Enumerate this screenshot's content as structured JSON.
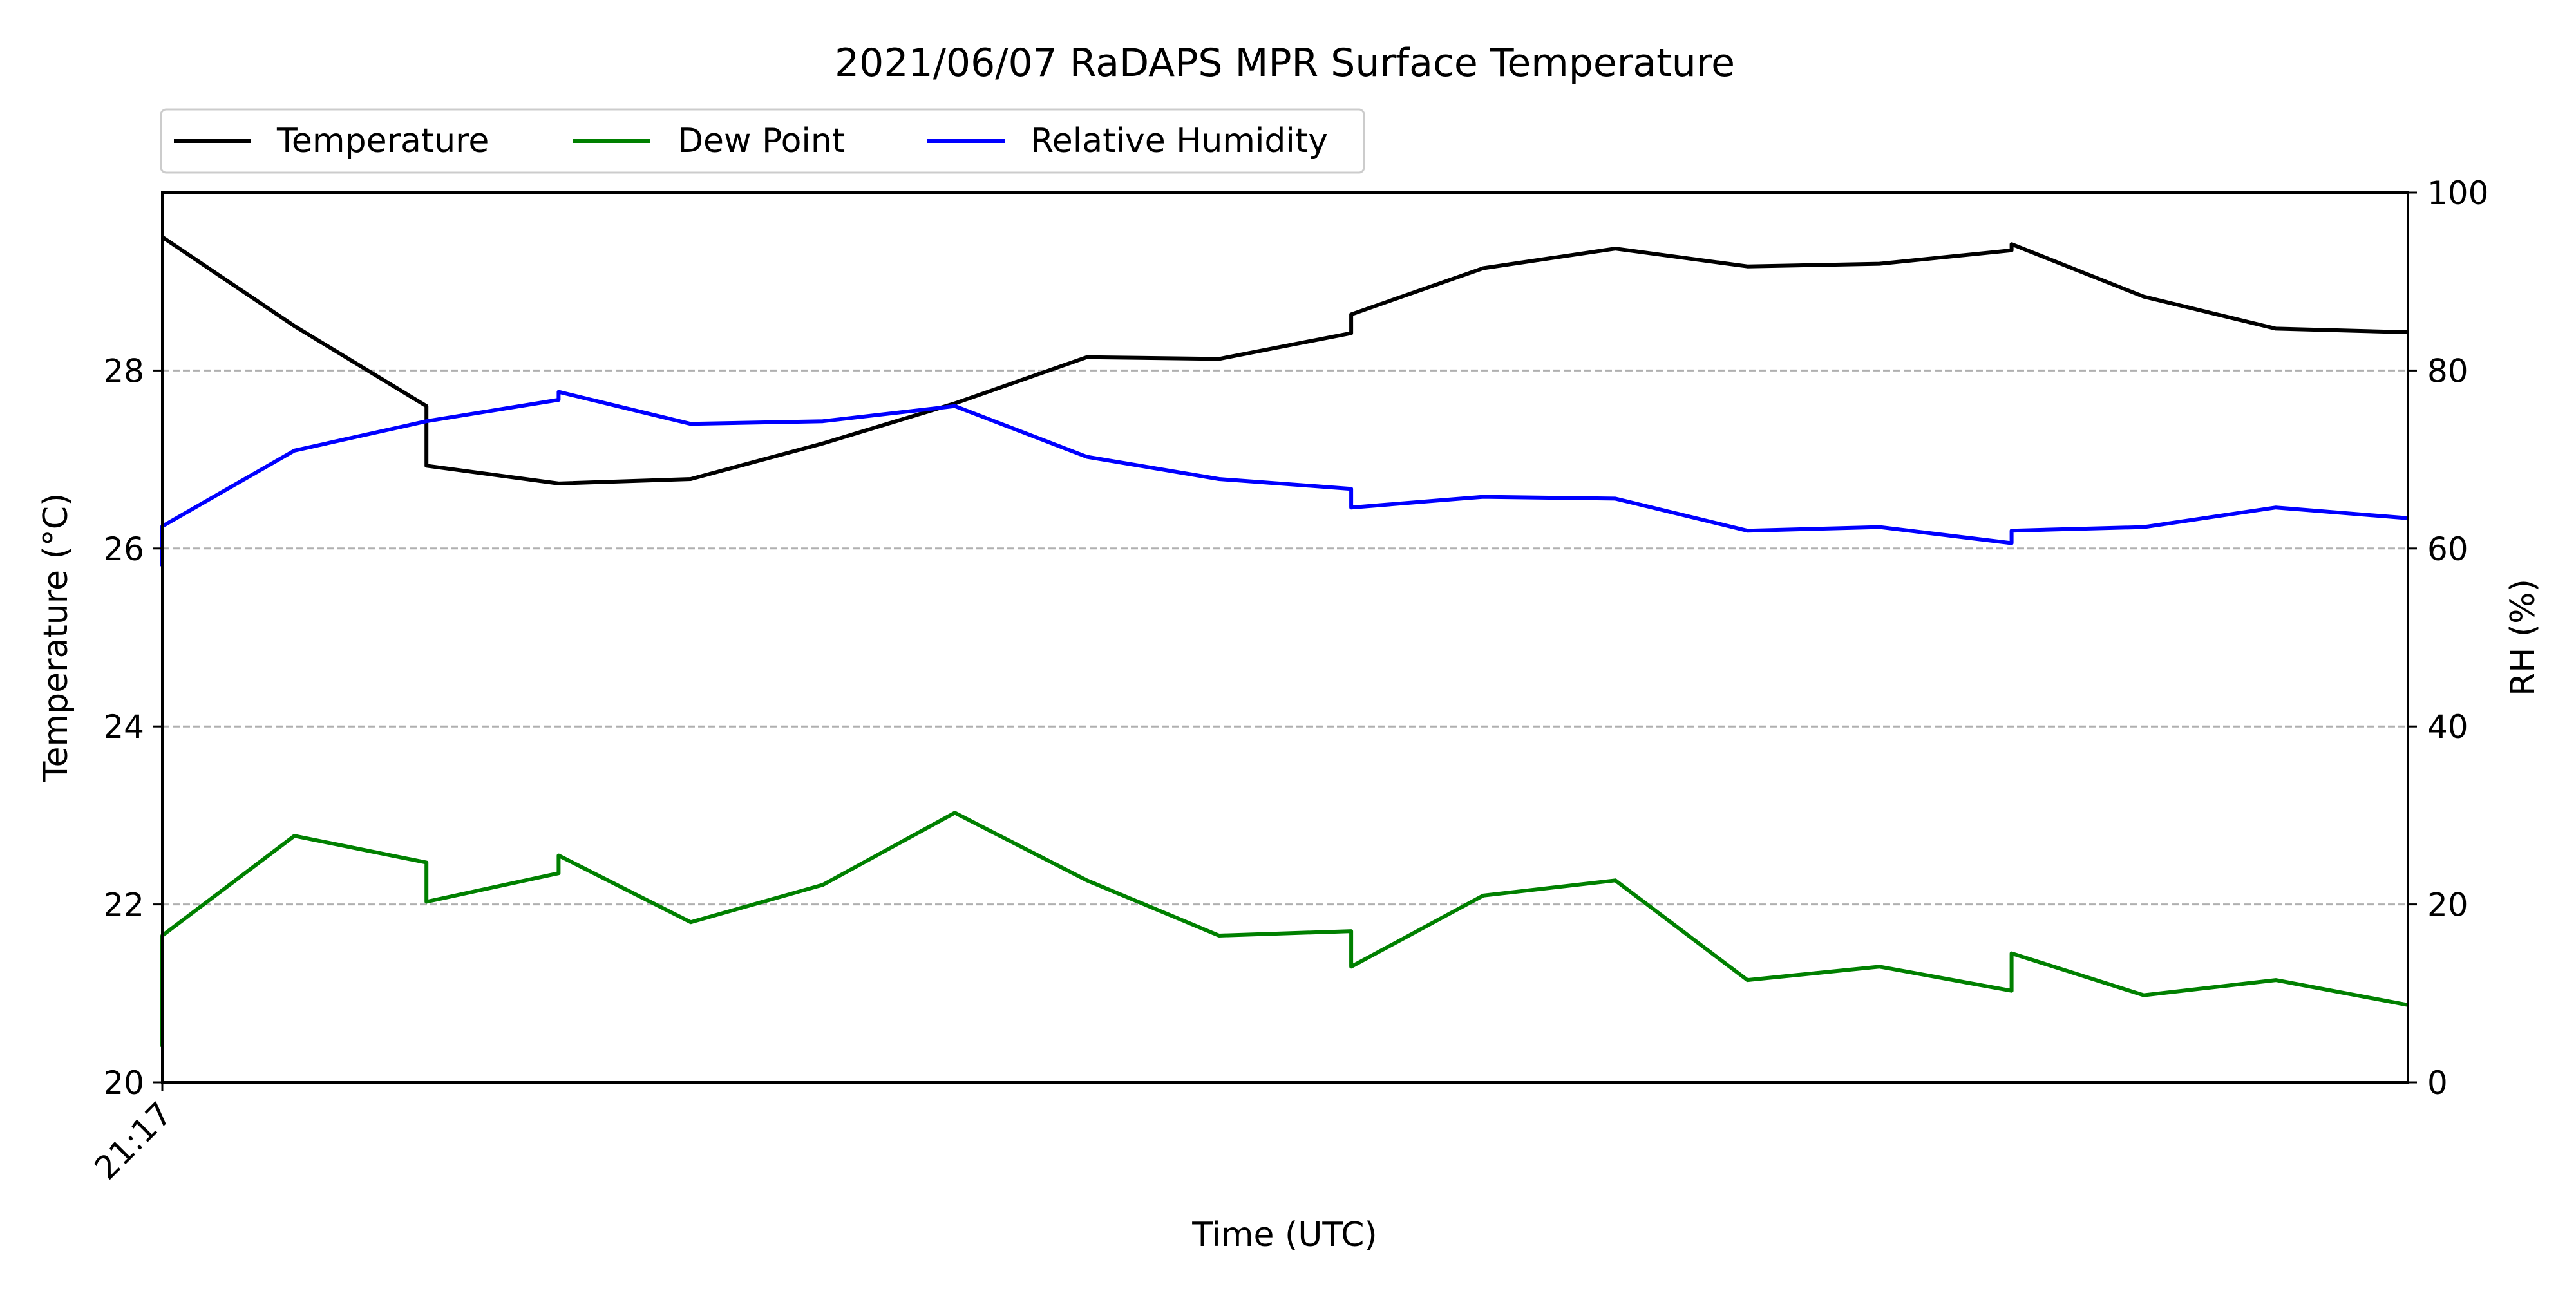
{
  "chart_data": {
    "type": "line",
    "title": "2021/06/07 RaDAPS MPR Surface Temperature",
    "xlabel": "Time (UTC)",
    "ylabel_left": "Temperature ($^\\circ$C)",
    "ylabel_left_display": "Temperature (°C)",
    "ylabel_right": "RH (%)",
    "x_ticks": [
      {
        "x": 0,
        "label": "21:17"
      }
    ],
    "xlim": [
      0,
      17
    ],
    "ylim_left": [
      20,
      30
    ],
    "ylim_right": [
      0,
      100
    ],
    "yticks_left": [
      20,
      22,
      24,
      26,
      28
    ],
    "yticks_right": [
      0,
      20,
      40,
      60,
      80,
      100
    ],
    "grid": "horizontal dashed",
    "legend_placement": "top-left, above plot",
    "series": [
      {
        "name": "Temperature",
        "axis": "left",
        "color": "#000000",
        "points": [
          [
            0,
            29.5
          ],
          [
            1,
            28.5
          ],
          [
            2,
            27.6
          ],
          [
            2,
            26.93
          ],
          [
            3,
            26.73
          ],
          [
            4,
            26.78
          ],
          [
            5,
            27.18
          ],
          [
            6,
            27.63
          ],
          [
            7,
            28.15
          ],
          [
            8,
            28.13
          ],
          [
            9,
            28.42
          ],
          [
            9,
            28.63
          ],
          [
            10,
            29.15
          ],
          [
            11,
            29.37
          ],
          [
            12,
            29.17
          ],
          [
            13,
            29.2
          ],
          [
            14,
            29.35
          ],
          [
            14,
            29.42
          ],
          [
            15,
            28.83
          ],
          [
            16,
            28.47
          ],
          [
            17,
            28.43
          ]
        ]
      },
      {
        "name": "Dew Point",
        "axis": "left",
        "color": "#008000",
        "points": [
          [
            0,
            20.4
          ],
          [
            0,
            21.65
          ],
          [
            1,
            22.77
          ],
          [
            2,
            22.47
          ],
          [
            2,
            22.03
          ],
          [
            3,
            22.35
          ],
          [
            3,
            22.55
          ],
          [
            4,
            21.8
          ],
          [
            5,
            22.22
          ],
          [
            6,
            23.03
          ],
          [
            7,
            22.27
          ],
          [
            8,
            21.65
          ],
          [
            9,
            21.7
          ],
          [
            9,
            21.3
          ],
          [
            10,
            22.1
          ],
          [
            11,
            22.27
          ],
          [
            12,
            21.15
          ],
          [
            13,
            21.3
          ],
          [
            14,
            21.03
          ],
          [
            14,
            21.45
          ],
          [
            15,
            20.98
          ],
          [
            16,
            21.15
          ],
          [
            17,
            20.87
          ]
        ]
      },
      {
        "name": "Relative Humidity",
        "axis": "right",
        "color": "#0000ff",
        "points": [
          [
            0,
            58
          ],
          [
            0,
            62.5
          ],
          [
            1,
            71
          ],
          [
            2,
            74.3
          ],
          [
            3,
            76.7
          ],
          [
            3,
            77.6
          ],
          [
            4,
            74
          ],
          [
            5,
            74.3
          ],
          [
            6,
            76
          ],
          [
            7,
            70.3
          ],
          [
            8,
            67.8
          ],
          [
            9,
            66.7
          ],
          [
            9,
            64.6
          ],
          [
            10,
            65.8
          ],
          [
            11,
            65.6
          ],
          [
            12,
            62
          ],
          [
            13,
            62.4
          ],
          [
            14,
            60.6
          ],
          [
            14,
            62
          ],
          [
            15,
            62.4
          ],
          [
            16,
            64.6
          ],
          [
            17,
            63.4
          ]
        ]
      }
    ]
  }
}
